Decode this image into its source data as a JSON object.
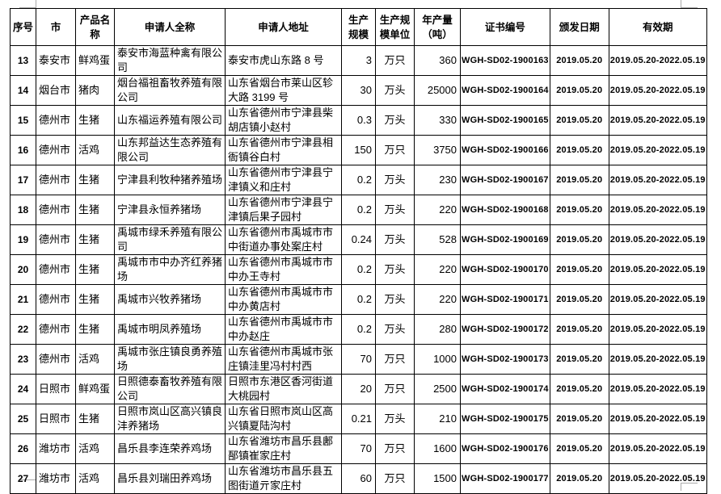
{
  "headers": [
    "序号",
    "市",
    "产品名称",
    "申请人全称",
    "申请人地址",
    "生产规模",
    "生产规模单位",
    "年产量（吨）",
    "证书编号",
    "颁发日期",
    "有效期"
  ],
  "rows": [
    [
      "13",
      "泰安市",
      "鲜鸡蛋",
      "泰安市海蓝种禽有限公司",
      "泰安市虎山东路 8 号",
      "3",
      "万只",
      "360",
      "WGH-SD02-1900163",
      "2019.05.20",
      "2019.05.20-2022.05.19"
    ],
    [
      "14",
      "烟台市",
      "猪肉",
      "烟台福祖畜牧养殖有限公司",
      "山东省烟台市莱山区轸大路 3199 号",
      "30",
      "万头",
      "25000",
      "WGH-SD02-1900164",
      "2019.05.20",
      "2019.05.20-2022.05.19"
    ],
    [
      "15",
      "德州市",
      "生猪",
      "山东福运养殖有限公司",
      "山东省德州市宁津县柴胡店镇小赵村",
      "0.3",
      "万头",
      "330",
      "WGH-SD02-1900165",
      "2019.05.20",
      "2019.05.20-2022.05.19"
    ],
    [
      "16",
      "德州市",
      "活鸡",
      "山东邦益达生态养殖有限公司",
      "山东省德州市宁津县相衙镇谷白村",
      "150",
      "万只",
      "3750",
      "WGH-SD02-1900166",
      "2019.05.20",
      "2019.05.20-2022.05.19"
    ],
    [
      "17",
      "德州市",
      "生猪",
      "宁津县利牧种猪养殖场",
      "山东省德州市宁津县宁津镇义和庄村",
      "0.2",
      "万头",
      "230",
      "WGH-SD02-1900167",
      "2019.05.20",
      "2019.05.20-2022.05.19"
    ],
    [
      "18",
      "德州市",
      "生猪",
      "宁津县永恒养猪场",
      "山东省德州市宁津县宁津镇后果子园村",
      "0.2",
      "万头",
      "220",
      "WGH-SD02-1900168",
      "2019.05.20",
      "2019.05.20-2022.05.19"
    ],
    [
      "19",
      "德州市",
      "生猪",
      "禹城市绿禾养殖有限公司",
      "山东省德州市禹城市市中街道办事处案庄村",
      "0.24",
      "万头",
      "528",
      "WGH-SD02-1900169",
      "2019.05.20",
      "2019.05.20-2022.05.19"
    ],
    [
      "20",
      "德州市",
      "生猪",
      "禹城市市中办齐红养猪场",
      "山东省德州市禹城市市中办王寺村",
      "0.2",
      "万头",
      "220",
      "WGH-SD02-1900170",
      "2019.05.20",
      "2019.05.20-2022.05.19"
    ],
    [
      "21",
      "德州市",
      "生猪",
      "禹城市兴牧养猪场",
      "山东省德州市禹城市市中办黄店村",
      "0.2",
      "万头",
      "220",
      "WGH-SD02-1900171",
      "2019.05.20",
      "2019.05.20-2022.05.19"
    ],
    [
      "22",
      "德州市",
      "生猪",
      "禹城市明凤养殖场",
      "山东省德州市禹城市市中办赵庄",
      "0.2",
      "万头",
      "280",
      "WGH-SD02-1900172",
      "2019.05.20",
      "2019.05.20-2022.05.19"
    ],
    [
      "23",
      "德州市",
      "活鸡",
      "禹城市张庄镇良勇养殖场",
      "山东省德州市禹城市张庄镇洼里冯村村西",
      "70",
      "万只",
      "1000",
      "WGH-SD02-1900173",
      "2019.05.20",
      "2019.05.20-2022.05.19"
    ],
    [
      "24",
      "日照市",
      "鲜鸡蛋",
      "日照德泰畜牧养殖有限公司",
      "日照市东港区香河街道大桃园村",
      "20",
      "万只",
      "2500",
      "WGH-SD02-1900174",
      "2019.05.20",
      "2019.05.20-2022.05.19"
    ],
    [
      "25",
      "日照市",
      "生猪",
      "日照市岚山区高兴镇良沣养猪场",
      "山东省日照市岚山区高兴镇夏陆沟村",
      "0.21",
      "万头",
      "210",
      "WGH-SD02-1900175",
      "2019.05.20",
      "2019.05.20-2022.05.19"
    ],
    [
      "26",
      "潍坊市",
      "活鸡",
      "昌乐县李连荣养鸡场",
      "山东省潍坊市昌乐县鄌郚镇崔家庄村",
      "70",
      "万只",
      "1600",
      "WGH-SD02-1900176",
      "2019.05.20",
      "2019.05.20-2022.05.19"
    ],
    [
      "27",
      "潍坊市",
      "活鸡",
      "昌乐县刘瑞田养鸡场",
      "山东省潍坊市昌乐县五图街道亓家庄村",
      "60",
      "万只",
      "1500",
      "WGH-SD02-1900177",
      "2019.05.20",
      "2019.05.20-2022.05.19"
    ]
  ]
}
